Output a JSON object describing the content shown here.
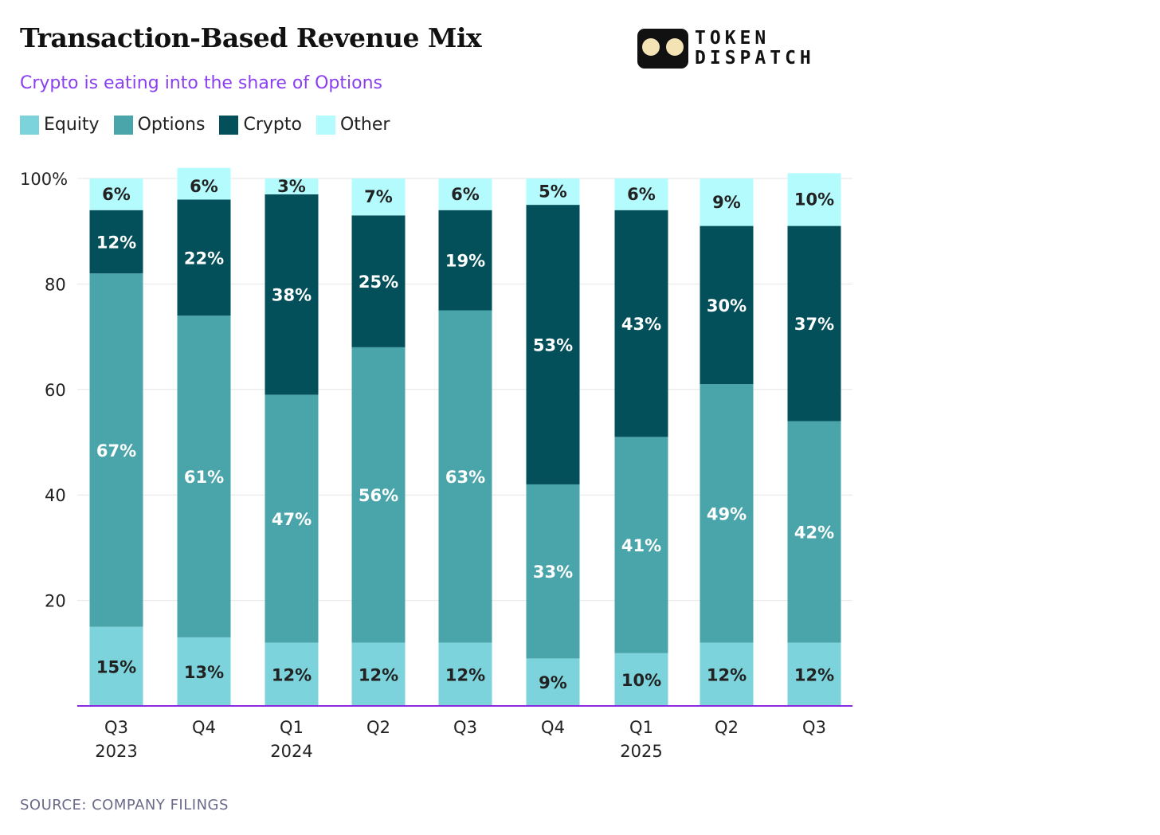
{
  "chart_data": {
    "type": "bar",
    "stacked": true,
    "title": "Transaction-Based Revenue Mix",
    "subtitle": "Crypto is eating into the share of Options",
    "source": "SOURCE: COMPANY FILINGS",
    "categories": [
      "Q3 2023",
      "Q4",
      "Q1 2024",
      "Q2",
      "Q3",
      "Q4",
      "Q1 2025",
      "Q2",
      "Q3"
    ],
    "category_lines": [
      [
        "Q3",
        "2023"
      ],
      [
        "Q4",
        ""
      ],
      [
        "Q1",
        "2024"
      ],
      [
        "Q2",
        ""
      ],
      [
        "Q3",
        ""
      ],
      [
        "Q4",
        ""
      ],
      [
        "Q1",
        "2025"
      ],
      [
        "Q2",
        ""
      ],
      [
        "Q3",
        ""
      ]
    ],
    "series": [
      {
        "name": "Equity",
        "color": "#7dd3db",
        "label_color": "#222222",
        "values": [
          15,
          13,
          12,
          12,
          12,
          9,
          10,
          12,
          12
        ]
      },
      {
        "name": "Options",
        "color": "#4aa5ab",
        "label_color": "#ffffff",
        "values": [
          67,
          61,
          47,
          56,
          63,
          33,
          41,
          49,
          42
        ]
      },
      {
        "name": "Crypto",
        "color": "#03505a",
        "label_color": "#ffffff",
        "values": [
          12,
          22,
          38,
          25,
          19,
          53,
          43,
          30,
          37
        ]
      },
      {
        "name": "Other",
        "color": "#b4fbfd",
        "label_color": "#222222",
        "values": [
          6,
          6,
          3,
          7,
          6,
          5,
          6,
          9,
          10
        ]
      }
    ],
    "yticks": [
      "20",
      "40",
      "60",
      "80",
      "100%"
    ],
    "ytick_values": [
      20,
      40,
      60,
      80,
      100
    ],
    "ylim": [
      0,
      100
    ],
    "grid": true,
    "legend_position": "top-left"
  },
  "logo": {
    "line1": "TOKEN",
    "line2": "DISPATCH"
  }
}
